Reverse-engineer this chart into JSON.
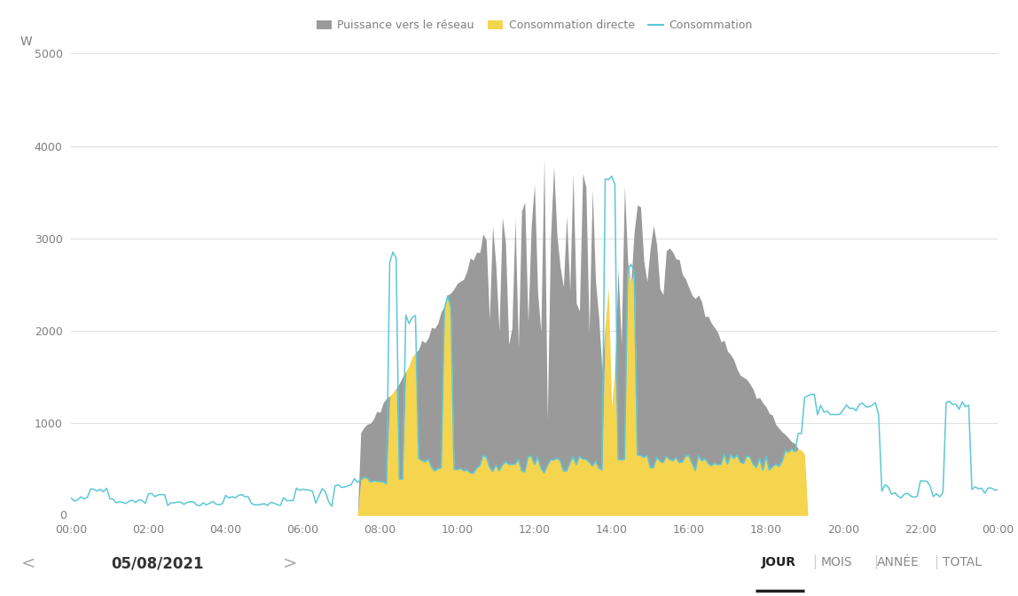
{
  "ylabel": "W",
  "ylim": [
    0,
    5000
  ],
  "yticks": [
    0,
    1000,
    2000,
    3000,
    4000,
    5000
  ],
  "xtick_labels": [
    "00:00",
    "02:00",
    "04:00",
    "06:00",
    "08:00",
    "10:00",
    "12:00",
    "14:00",
    "16:00",
    "18:00",
    "20:00",
    "22:00",
    "00:00"
  ],
  "legend_labels": [
    "Puissance vers le réseau",
    "Consommation directe",
    "Consommation"
  ],
  "color_gray": "#9a9a9a",
  "color_yellow": "#f5d44e",
  "color_blue": "#5bc8d5",
  "background_color": "#ffffff",
  "grid_color": "#e0e0e0",
  "label_color": "#7f7f7f",
  "footer_date": "05/08/2021",
  "footer_tabs": [
    "JOUR",
    "MOIS",
    "ANNÉE",
    "TOTAL"
  ],
  "active_tab": "JOUR"
}
